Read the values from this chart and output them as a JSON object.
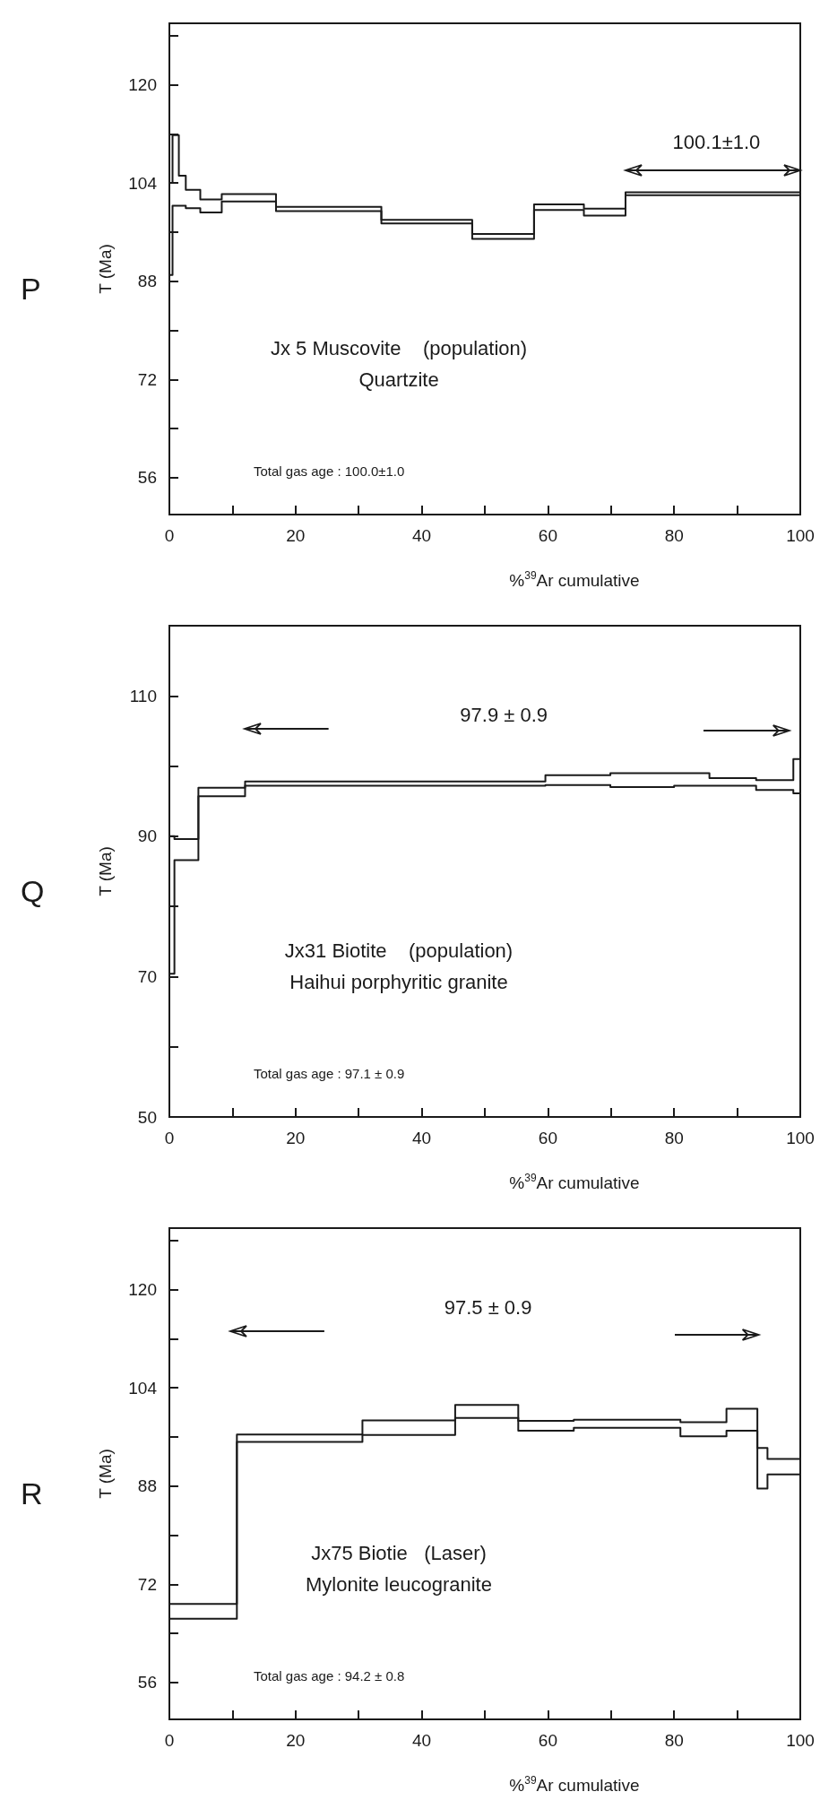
{
  "chart_data": [
    {
      "type": "step",
      "title": "P",
      "xlabel": "%$^{39}$Ar cumulative",
      "ylabel": "T (Ma)",
      "xlim": [
        0,
        100
      ],
      "xticks": [
        0,
        {
          "value": 10,
          "label": null
        },
        20,
        {
          "value": 30,
          "label": null
        },
        40,
        {
          "value": 50,
          "label": null
        },
        60,
        {
          "value": 70,
          "label": null
        },
        80,
        {
          "value": 90,
          "label": null
        },
        100
      ],
      "ylim": [
        50,
        130
      ],
      "yticks": [
        56,
        {
          "value": 64,
          "label": null
        },
        72,
        {
          "value": 80,
          "label": null
        },
        88,
        {
          "value": 96,
          "label": null
        },
        104,
        {
          "value": 112,
          "label": null
        },
        120,
        {
          "value": 128,
          "label": null
        }
      ],
      "marker": "none",
      "line_style": "solid",
      "series": [
        {
          "color": "#1a1a1a",
          "x": [
            0,
            0.5,
            1.5,
            2.6,
            4.9,
            8.3,
            16.9,
            33.6,
            48,
            57.8,
            65.7,
            72.3,
            100
          ],
          "values": [
            104,
            111.8,
            105.2,
            102.9,
            101.3,
            102.2,
            100.1,
            98.0,
            95.7,
            100.5,
            99.8,
            102.5,
            102.5
          ]
        },
        {
          "color": "#1a1a1a",
          "x": [
            0,
            0.5,
            1.5,
            2.6,
            4.9,
            8.3,
            16.9,
            33.6,
            48,
            57.8,
            65.7,
            72.3,
            100
          ],
          "values": [
            89,
            100.3,
            100.3,
            99.9,
            99.2,
            101.0,
            99.4,
            97.4,
            94.9,
            99.6,
            98.7,
            102.0,
            102.0
          ]
        }
      ],
      "annotations": [
        "100.1±1.0",
        "Jx 5 Muscovite    (population)\nQuartzite",
        "Total gas age : 100.0±1.0"
      ]
    },
    {
      "type": "step",
      "title": "Q",
      "xlabel": "%$^{39}$Ar cumulative",
      "ylabel": "T (Ma)",
      "xlim": [
        0,
        100
      ],
      "xticks": [
        0,
        {
          "value": 10,
          "label": null
        },
        20,
        {
          "value": 30,
          "label": null
        },
        40,
        {
          "value": 50,
          "label": null
        },
        60,
        {
          "value": 70,
          "label": null
        },
        80,
        {
          "value": 90,
          "label": null
        },
        100
      ],
      "ylim": [
        50,
        120
      ],
      "yticks": [
        50,
        {
          "value": 60,
          "label": null
        },
        70,
        {
          "value": 80,
          "label": null
        },
        90,
        {
          "value": 100,
          "label": null
        },
        110
      ],
      "marker": "none",
      "line_style": "solid",
      "series": [
        {
          "color": "#1a1a1a",
          "x": [
            0,
            0.8,
            4.6,
            12,
            59.6,
            69.9,
            75.7,
            80,
            85.6,
            93,
            98.9,
            100
          ],
          "values": [
            90,
            89.6,
            96.9,
            97.8,
            98.7,
            99.0,
            99.0,
            99.0,
            98.3,
            98.0,
            101.0,
            101.0
          ]
        },
        {
          "color": "#1a1a1a",
          "x": [
            0,
            0.8,
            4.6,
            12,
            59.6,
            69.9,
            75.7,
            80,
            85.6,
            93,
            98.9,
            100
          ],
          "values": [
            70.4,
            86.6,
            95.7,
            97.2,
            97.3,
            97.0,
            97.0,
            97.2,
            97.2,
            96.6,
            96.1,
            96.1
          ]
        }
      ],
      "annotations": [
        "97.9 ± 0.9",
        "Jx31 Biotite    (population)\nHaihui porphyritic granite",
        "Total gas age : 97.1 ± 0.9"
      ]
    },
    {
      "type": "step",
      "title": "R",
      "xlabel": "%$^{39}$Ar cumulative",
      "ylabel": "T (Ma)",
      "xlim": [
        0,
        100
      ],
      "xticks": [
        0,
        {
          "value": 10,
          "label": null
        },
        20,
        {
          "value": 30,
          "label": null
        },
        40,
        {
          "value": 50,
          "label": null
        },
        60,
        {
          "value": 70,
          "label": null
        },
        80,
        {
          "value": 90,
          "label": null
        },
        100
      ],
      "ylim": [
        50,
        130
      ],
      "yticks": [
        56,
        {
          "value": 64,
          "label": null
        },
        72,
        {
          "value": 80,
          "label": null
        },
        88,
        {
          "value": 96,
          "label": null
        },
        104,
        {
          "value": 112,
          "label": null
        },
        120,
        {
          "value": 128,
          "label": null
        }
      ],
      "marker": "none",
      "line_style": "solid",
      "series": [
        {
          "color": "#1a1a1a",
          "x": [
            0,
            10.7,
            30.6,
            45.3,
            55.3,
            64.1,
            81,
            88.3,
            93.2,
            94.8,
            100
          ],
          "values": [
            68.8,
            96.4,
            98.7,
            101.2,
            98.6,
            98.8,
            98.4,
            100.6,
            94.2,
            92.4,
            92.4
          ]
        },
        {
          "color": "#1a1a1a",
          "x": [
            0,
            10.7,
            30.6,
            45.3,
            55.3,
            64.1,
            81,
            88.3,
            93.2,
            94.8,
            100
          ],
          "values": [
            66.4,
            95.2,
            96.3,
            99.1,
            97.0,
            97.5,
            96.1,
            97.0,
            87.6,
            89.9,
            89.9
          ]
        }
      ],
      "annotations": [
        "97.5 ± 0.9",
        "Jx75 Biotie   (Laser)\nMylonite leucogranite",
        "Total gas age : 94.2 ± 0.8"
      ]
    }
  ]
}
